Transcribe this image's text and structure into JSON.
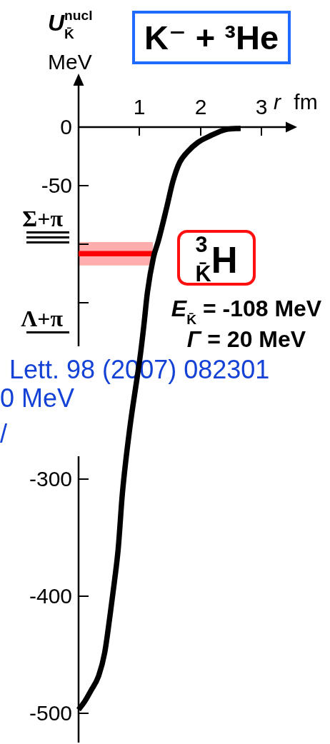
{
  "chart_data": {
    "type": "line",
    "title": "K⁻ + ³He",
    "xlabel": "r fm",
    "ylabel": "U$^{nucl}$$_{K̄}$\nMeV",
    "xlim": [
      0,
      3.4
    ],
    "xticks": [
      1,
      2,
      3
    ],
    "ylim": [
      -525,
      0
    ],
    "yticks": [
      0,
      -50,
      {
        "value": -100,
        "label": null
      },
      {
        "value": -150,
        "label": null
      },
      -300,
      -400,
      -500
    ],
    "series": [
      {
        "color": "#000000",
        "x": [
          0,
          0.1,
          0.2,
          0.33,
          0.43,
          0.52,
          0.59,
          0.65,
          0.72,
          0.84,
          0.96,
          1.01,
          1.07,
          1.13,
          1.23,
          1.31,
          1.44,
          1.55,
          1.66,
          1.79,
          1.96,
          2.14,
          2.42,
          2.66
        ],
        "values": [
          -497,
          -490,
          -481,
          -468,
          -448,
          -415,
          -387,
          -360,
          -312,
          -257,
          -214,
          -196,
          -170,
          -141,
          -111,
          -97,
          -70,
          -46,
          -30,
          -21,
          -13,
          -8,
          -2,
          -1
        ]
      },
      {
        "color": "#ff0000",
        "x": [
          0,
          1.22
        ],
        "values": [
          -108,
          -108
        ],
        "lower": [
          -118,
          -118
        ],
        "upper": [
          -98,
          -98
        ]
      }
    ],
    "ref_lines": [
      {
        "axis": "y",
        "value": -90,
        "label": "Σ+π"
      },
      {
        "axis": "y",
        "value": -175,
        "label": "Λ+π"
      }
    ],
    "annotations": [
      "$^{3}$$_{K̄}$H",
      "E$_{K̄}$ = -108 MeV",
      "Γ = 20 MeV",
      "Lett. 98 (2007) 082301",
      "0 MeV",
      "/"
    ]
  }
}
